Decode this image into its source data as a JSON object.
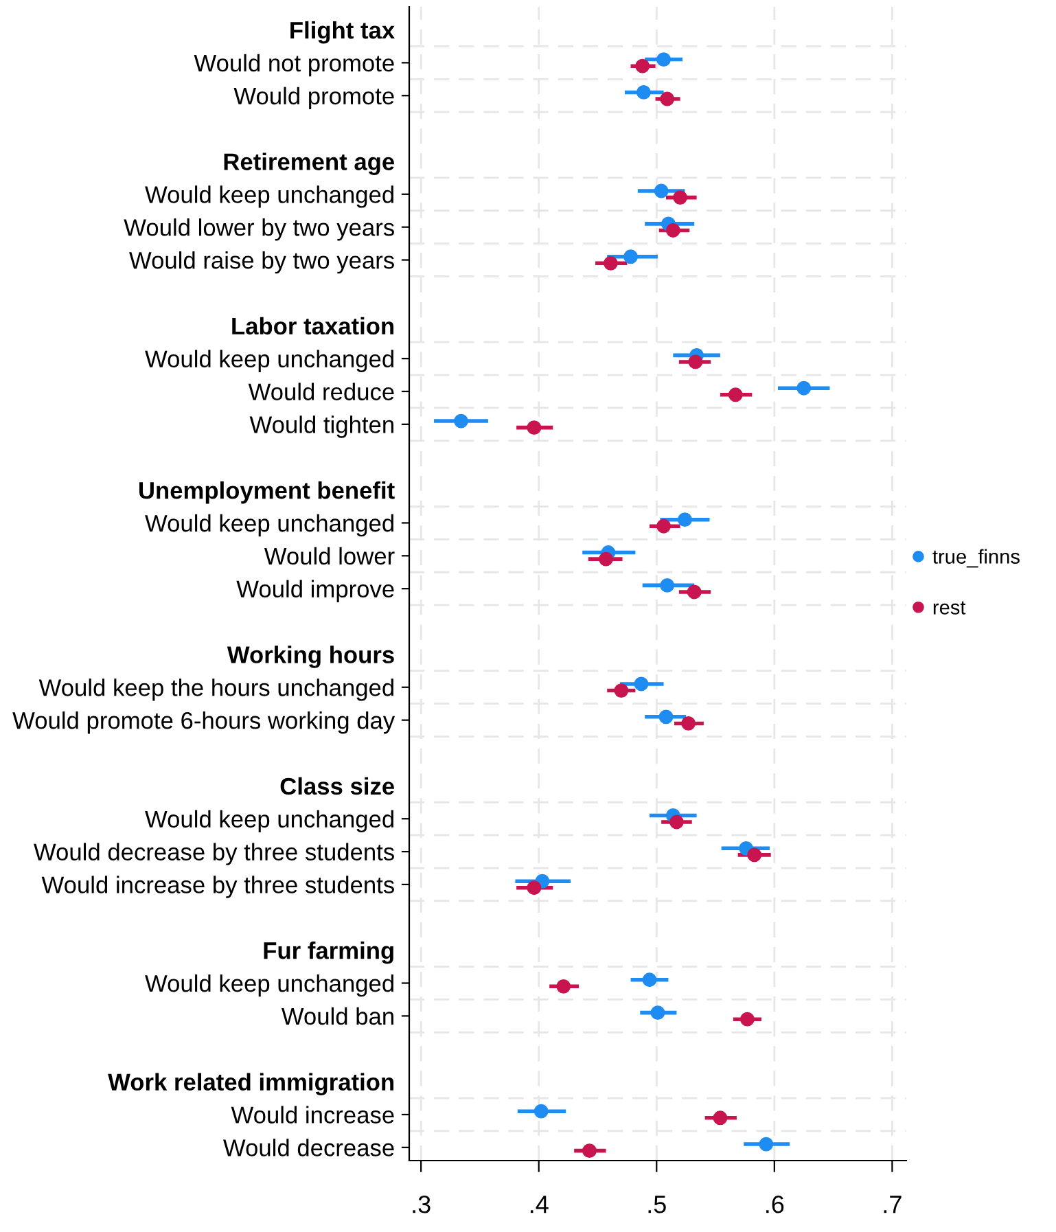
{
  "chart_data": {
    "type": "scatter",
    "orientation": "horizontal",
    "categories": [
      "Flight tax",
      "Would not promote",
      "Would promote",
      null,
      "Retirement age",
      "Would keep unchanged",
      "Would lower by two years",
      "Would raise by two years",
      null,
      "Labor taxation",
      "Would keep unchanged",
      "Would reduce",
      "Would tighten",
      null,
      "Unemployment benefit",
      "Would keep unchanged",
      "Would lower",
      "Would improve",
      null,
      "Working hours",
      "Would keep the hours unchanged",
      "Would promote 6-hours working day",
      null,
      "Class size",
      "Would keep unchanged",
      "Would decrease by three students",
      "Would increase by three students",
      null,
      "Fur farming",
      "Would keep unchanged",
      "Would ban",
      null,
      "Work related immigration",
      "Would increase",
      "Would decrease"
    ],
    "series": [
      {
        "name": "true_finns",
        "color": "#1e8cf0",
        "values": [
          null,
          0.506,
          0.489,
          null,
          null,
          0.504,
          0.51,
          0.478,
          null,
          null,
          0.534,
          0.625,
          0.334,
          null,
          null,
          0.524,
          0.459,
          0.509,
          null,
          null,
          0.487,
          0.508,
          null,
          null,
          0.514,
          0.576,
          0.403,
          null,
          null,
          0.494,
          0.501,
          null,
          null,
          0.402,
          0.593
        ],
        "errors": [
          null,
          [
            0.49,
            0.522
          ],
          [
            0.473,
            0.506
          ],
          null,
          null,
          [
            0.484,
            0.524
          ],
          [
            0.49,
            0.532
          ],
          [
            0.458,
            0.501
          ],
          null,
          null,
          [
            0.514,
            0.554
          ],
          [
            0.603,
            0.647
          ],
          [
            0.311,
            0.357
          ],
          null,
          null,
          [
            0.503,
            0.545
          ],
          [
            0.437,
            0.482
          ],
          [
            0.488,
            0.532
          ],
          null,
          null,
          [
            0.469,
            0.506
          ],
          [
            0.49,
            0.525
          ],
          null,
          null,
          [
            0.494,
            0.534
          ],
          [
            0.555,
            0.596
          ],
          [
            0.38,
            0.427
          ],
          null,
          null,
          [
            0.478,
            0.51
          ],
          [
            0.486,
            0.517
          ],
          null,
          null,
          [
            0.382,
            0.423
          ],
          [
            0.574,
            0.613
          ]
        ]
      },
      {
        "name": "rest",
        "color": "#c8144f",
        "values": [
          null,
          0.488,
          0.509,
          null,
          null,
          0.52,
          0.514,
          0.461,
          null,
          null,
          0.533,
          0.567,
          0.396,
          null,
          null,
          0.506,
          0.457,
          0.532,
          null,
          null,
          0.47,
          0.527,
          null,
          null,
          0.517,
          0.583,
          0.396,
          null,
          null,
          0.421,
          0.577,
          null,
          null,
          0.554,
          0.443
        ],
        "errors": [
          null,
          [
            0.478,
            0.499
          ],
          [
            0.499,
            0.52
          ],
          null,
          null,
          [
            0.508,
            0.534
          ],
          [
            0.502,
            0.528
          ],
          [
            0.448,
            0.475
          ],
          null,
          null,
          [
            0.519,
            0.546
          ],
          [
            0.554,
            0.581
          ],
          [
            0.381,
            0.412
          ],
          null,
          null,
          [
            0.494,
            0.52
          ],
          [
            0.442,
            0.471
          ],
          [
            0.519,
            0.546
          ],
          null,
          null,
          [
            0.458,
            0.482
          ],
          [
            0.515,
            0.54
          ],
          null,
          null,
          [
            0.504,
            0.53
          ],
          [
            0.569,
            0.597
          ],
          [
            0.381,
            0.412
          ],
          null,
          null,
          [
            0.409,
            0.434
          ],
          [
            0.565,
            0.589
          ],
          null,
          null,
          [
            0.541,
            0.568
          ],
          [
            0.43,
            0.457
          ]
        ]
      }
    ],
    "xlim": [
      0.29,
      0.712
    ],
    "xticks": [
      {
        "value": 0.3,
        "label": ".3"
      },
      {
        "value": 0.4,
        "label": ".4"
      },
      {
        "value": 0.5,
        "label": ".5"
      },
      {
        "value": 0.6,
        "label": ".6"
      },
      {
        "value": 0.7,
        "label": ".7"
      }
    ],
    "grid": true,
    "legend": "right",
    "marker": "circle"
  }
}
